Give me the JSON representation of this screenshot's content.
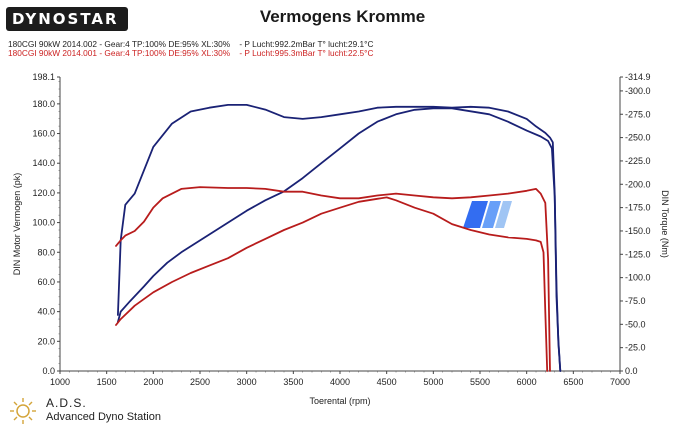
{
  "header": {
    "logo_text": "DYNOSTAR",
    "title": "Vermogens Kromme",
    "sessions": [
      {
        "label": "180CGI 90kW 2014.002 - Gear:4 TP:100% DE:95% XL:30%    - P Lucht:992.2mBar T° lucht:29.1°C",
        "color": "#222222"
      },
      {
        "label": "180CGI 90kW 2014.001 - Gear:4 TP:100% DE:95% XL:30%    - P Lucht:995.3mBar T° lucht:22.5°C",
        "color": "#cc2222"
      }
    ]
  },
  "footer": {
    "ads_title": "A.D.S.",
    "ads_subtitle": "Advanced Dyno Station"
  },
  "colors": {
    "navy": "#1a2275",
    "red": "#b81c1c",
    "watermark": "#1e5ef0"
  },
  "chart_data": {
    "type": "line",
    "xlabel": "Toerental (rpm)",
    "ylabel_left": "DIN Motor Vermogen (pk)",
    "ylabel_right": "DIN Torque (Nm)",
    "xlim": [
      1000,
      7000
    ],
    "ylim_left": [
      0,
      198.1
    ],
    "ylim_right": [
      0,
      -314.9
    ],
    "x_ticks": [
      "1000",
      "1500",
      "2000",
      "2500",
      "3000",
      "3500",
      "4000",
      "4500",
      "5000",
      "5500",
      "6000",
      "6500",
      "7000"
    ],
    "y_left_ticks": [
      "0.0",
      "20.0",
      "40.0",
      "60.0",
      "80.0",
      "100.0",
      "120.0",
      "140.0",
      "160.0",
      "180.0",
      "198.1"
    ],
    "y_right_ticks": [
      "0.0",
      "-25.0",
      "-50.0",
      "-75.0",
      "-100.0",
      "-125.0",
      "-150.0",
      "-175.0",
      "-200.0",
      "-225.0",
      "-250.0",
      "-275.0",
      "-300.0",
      "-314.9"
    ],
    "grid": false,
    "series": [
      {
        "session": 0,
        "quantity": "power",
        "axis": "left",
        "color": "#1a2275",
        "x": [
          1620,
          1650,
          1750,
          1900,
          2000,
          2150,
          2300,
          2450,
          2600,
          2800,
          3000,
          3200,
          3400,
          3600,
          3800,
          4000,
          4200,
          4400,
          4600,
          4800,
          5000,
          5200,
          5400,
          5600,
          5800,
          6000,
          6150,
          6230,
          6270,
          6300,
          6320,
          6340,
          6360
        ],
        "y": [
          33,
          40,
          47,
          57,
          64,
          73,
          80,
          86,
          92,
          100,
          108,
          115,
          121,
          130,
          140,
          150,
          160,
          168,
          173,
          176,
          177,
          177,
          175,
          173,
          168,
          162,
          158,
          155,
          150,
          118,
          50,
          20,
          0
        ]
      },
      {
        "session": 0,
        "quantity": "torque",
        "axis": "right",
        "color": "#1a2275",
        "x": [
          1620,
          1650,
          1700,
          1800,
          2000,
          2200,
          2400,
          2600,
          2800,
          3000,
          3200,
          3400,
          3600,
          3800,
          4000,
          4200,
          4400,
          4600,
          4800,
          5000,
          5200,
          5400,
          5600,
          5800,
          6000,
          6100,
          6200,
          6250,
          6280,
          6300,
          6320,
          6340,
          6360
        ],
        "y": [
          -60,
          -140,
          -178,
          -190,
          -240,
          -265,
          -278,
          -282,
          -285,
          -285,
          -280,
          -272,
          -270,
          -272,
          -275,
          -278,
          -282,
          -283,
          -283,
          -283,
          -282,
          -283,
          -282,
          -278,
          -270,
          -262,
          -255,
          -250,
          -245,
          -190,
          -90,
          -30,
          0
        ]
      },
      {
        "session": 1,
        "quantity": "power",
        "axis": "left",
        "color": "#b81c1c",
        "x": [
          1600,
          1650,
          1800,
          2000,
          2200,
          2400,
          2600,
          2800,
          3000,
          3200,
          3400,
          3600,
          3800,
          4000,
          4200,
          4400,
          4500,
          4600,
          4800,
          5000,
          5200,
          5400,
          5600,
          5800,
          6000,
          6100,
          6150,
          6180,
          6200,
          6220
        ],
        "y": [
          31,
          35,
          44,
          53,
          60,
          66,
          71,
          76,
          83,
          89,
          95,
          100,
          106,
          110,
          114,
          116,
          117,
          115,
          110,
          106,
          99,
          95,
          92,
          90,
          89,
          88,
          87,
          80,
          40,
          0
        ]
      },
      {
        "session": 1,
        "quantity": "torque",
        "axis": "right",
        "color": "#b81c1c",
        "x": [
          1600,
          1650,
          1700,
          1800,
          1900,
          2000,
          2100,
          2300,
          2500,
          2800,
          3000,
          3200,
          3400,
          3600,
          3800,
          4000,
          4200,
          4400,
          4600,
          4800,
          5000,
          5200,
          5400,
          5600,
          5800,
          6000,
          6100,
          6150,
          6200,
          6230,
          6250
        ],
        "y": [
          -134,
          -140,
          -145,
          -150,
          -160,
          -175,
          -185,
          -195,
          -197,
          -196,
          -196,
          -195,
          -192,
          -192,
          -188,
          -185,
          -185,
          -188,
          -190,
          -188,
          -186,
          -185,
          -186,
          -188,
          -190,
          -193,
          -195,
          -190,
          -180,
          -120,
          0
        ]
      }
    ]
  }
}
